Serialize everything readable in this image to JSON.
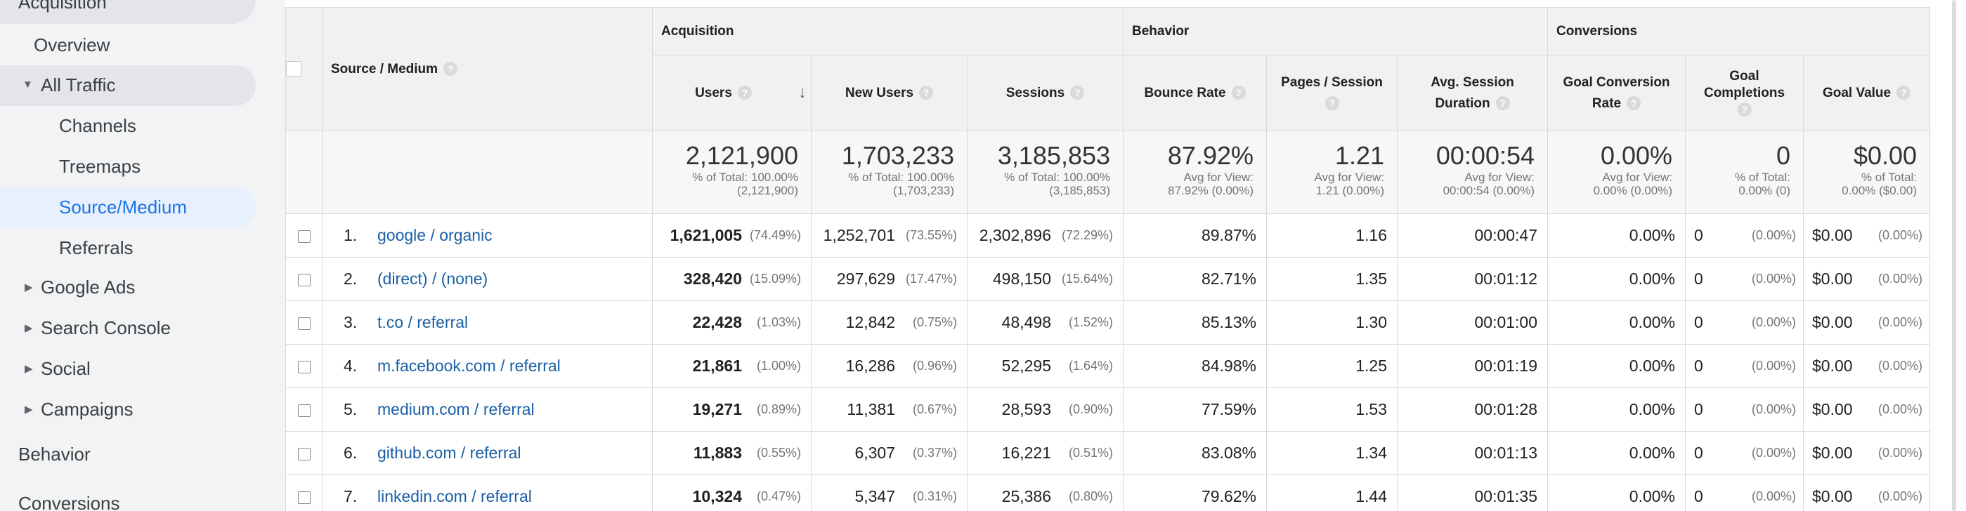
{
  "sidebar": {
    "acquisition": "Acquisition",
    "overview": "Overview",
    "all_traffic": "All Traffic",
    "channels": "Channels",
    "treemaps": "Treemaps",
    "source_medium": "Source/Medium",
    "referrals": "Referrals",
    "google_ads": "Google Ads",
    "search_console": "Search Console",
    "social": "Social",
    "campaigns": "Campaigns",
    "behavior": "Behavior",
    "conversions": "Conversions"
  },
  "table": {
    "groups": {
      "acquisition": "Acquisition",
      "behavior": "Behavior",
      "conversions": "Conversions"
    },
    "columns": {
      "source_medium": "Source / Medium",
      "users": "Users",
      "new_users": "New Users",
      "sessions": "Sessions",
      "bounce_rate": "Bounce Rate",
      "pages_session": "Pages / Session",
      "avg_session_duration_1": "Avg. Session",
      "avg_session_duration_2": "Duration",
      "goal_conversion_rate_1": "Goal Conversion",
      "goal_conversion_rate_2": "Rate",
      "goal_completions_1": "Goal",
      "goal_completions_2": "Completions",
      "goal_value": "Goal Value"
    },
    "help_glyph": "?",
    "sort_glyph": "↓",
    "totals": {
      "users": {
        "value": "2,121,900",
        "sub1": "% of Total: 100.00%",
        "sub2": "(2,121,900)"
      },
      "new_users": {
        "value": "1,703,233",
        "sub1": "% of Total: 100.00%",
        "sub2": "(1,703,233)"
      },
      "sessions": {
        "value": "3,185,853",
        "sub1": "% of Total: 100.00%",
        "sub2": "(3,185,853)"
      },
      "bounce_rate": {
        "value": "87.92%",
        "sub1": "Avg for View:",
        "sub2": "87.92% (0.00%)"
      },
      "pages_session": {
        "value": "1.21",
        "sub1": "Avg for View:",
        "sub2": "1.21 (0.00%)"
      },
      "avg_duration": {
        "value": "00:00:54",
        "sub1": "Avg for View:",
        "sub2": "00:00:54 (0.00%)"
      },
      "goal_conv_rate": {
        "value": "0.00%",
        "sub1": "Avg for View:",
        "sub2": "0.00% (0.00%)"
      },
      "goal_completions": {
        "value": "0",
        "sub1": "% of Total:",
        "sub2": "0.00% (0)"
      },
      "goal_value": {
        "value": "$0.00",
        "sub1": "% of Total:",
        "sub2": "0.00% ($0.00)"
      }
    },
    "rows": [
      {
        "rank": "1.",
        "source": "google / organic",
        "users": "1,621,005",
        "users_pct": "(74.49%)",
        "new_users": "1,252,701",
        "new_users_pct": "(73.55%)",
        "sessions": "2,302,896",
        "sessions_pct": "(72.29%)",
        "bounce_rate": "89.87%",
        "pages_session": "1.16",
        "avg_duration": "00:00:47",
        "goal_conv_rate": "0.00%",
        "goal_completions": "0",
        "goal_completions_pct": "(0.00%)",
        "goal_value": "$0.00",
        "goal_value_pct": "(0.00%)"
      },
      {
        "rank": "2.",
        "source": "(direct) / (none)",
        "users": "328,420",
        "users_pct": "(15.09%)",
        "new_users": "297,629",
        "new_users_pct": "(17.47%)",
        "sessions": "498,150",
        "sessions_pct": "(15.64%)",
        "bounce_rate": "82.71%",
        "pages_session": "1.35",
        "avg_duration": "00:01:12",
        "goal_conv_rate": "0.00%",
        "goal_completions": "0",
        "goal_completions_pct": "(0.00%)",
        "goal_value": "$0.00",
        "goal_value_pct": "(0.00%)"
      },
      {
        "rank": "3.",
        "source": "t.co / referral",
        "users": "22,428",
        "users_pct": "(1.03%)",
        "new_users": "12,842",
        "new_users_pct": "(0.75%)",
        "sessions": "48,498",
        "sessions_pct": "(1.52%)",
        "bounce_rate": "85.13%",
        "pages_session": "1.30",
        "avg_duration": "00:01:00",
        "goal_conv_rate": "0.00%",
        "goal_completions": "0",
        "goal_completions_pct": "(0.00%)",
        "goal_value": "$0.00",
        "goal_value_pct": "(0.00%)"
      },
      {
        "rank": "4.",
        "source": "m.facebook.com / referral",
        "users": "21,861",
        "users_pct": "(1.00%)",
        "new_users": "16,286",
        "new_users_pct": "(0.96%)",
        "sessions": "52,295",
        "sessions_pct": "(1.64%)",
        "bounce_rate": "84.98%",
        "pages_session": "1.25",
        "avg_duration": "00:01:19",
        "goal_conv_rate": "0.00%",
        "goal_completions": "0",
        "goal_completions_pct": "(0.00%)",
        "goal_value": "$0.00",
        "goal_value_pct": "(0.00%)"
      },
      {
        "rank": "5.",
        "source": "medium.com / referral",
        "users": "19,271",
        "users_pct": "(0.89%)",
        "new_users": "11,381",
        "new_users_pct": "(0.67%)",
        "sessions": "28,593",
        "sessions_pct": "(0.90%)",
        "bounce_rate": "77.59%",
        "pages_session": "1.53",
        "avg_duration": "00:01:28",
        "goal_conv_rate": "0.00%",
        "goal_completions": "0",
        "goal_completions_pct": "(0.00%)",
        "goal_value": "$0.00",
        "goal_value_pct": "(0.00%)"
      },
      {
        "rank": "6.",
        "source": "github.com / referral",
        "users": "11,883",
        "users_pct": "(0.55%)",
        "new_users": "6,307",
        "new_users_pct": "(0.37%)",
        "sessions": "16,221",
        "sessions_pct": "(0.51%)",
        "bounce_rate": "83.08%",
        "pages_session": "1.34",
        "avg_duration": "00:01:13",
        "goal_conv_rate": "0.00%",
        "goal_completions": "0",
        "goal_completions_pct": "(0.00%)",
        "goal_value": "$0.00",
        "goal_value_pct": "(0.00%)"
      },
      {
        "rank": "7.",
        "source": "linkedin.com / referral",
        "users": "10,324",
        "users_pct": "(0.47%)",
        "new_users": "5,347",
        "new_users_pct": "(0.31%)",
        "sessions": "25,386",
        "sessions_pct": "(0.80%)",
        "bounce_rate": "79.62%",
        "pages_session": "1.44",
        "avg_duration": "00:01:35",
        "goal_conv_rate": "0.00%",
        "goal_completions": "0",
        "goal_completions_pct": "(0.00%)",
        "goal_value": "$0.00",
        "goal_value_pct": "(0.00%)"
      }
    ]
  },
  "colors": {
    "link": "#1a5fa6",
    "active": "#1a73e8",
    "sidebar_bg": "#f1f3f4",
    "active_bg": "#e8f0fe",
    "hover_bg": "#e3e5e8"
  }
}
